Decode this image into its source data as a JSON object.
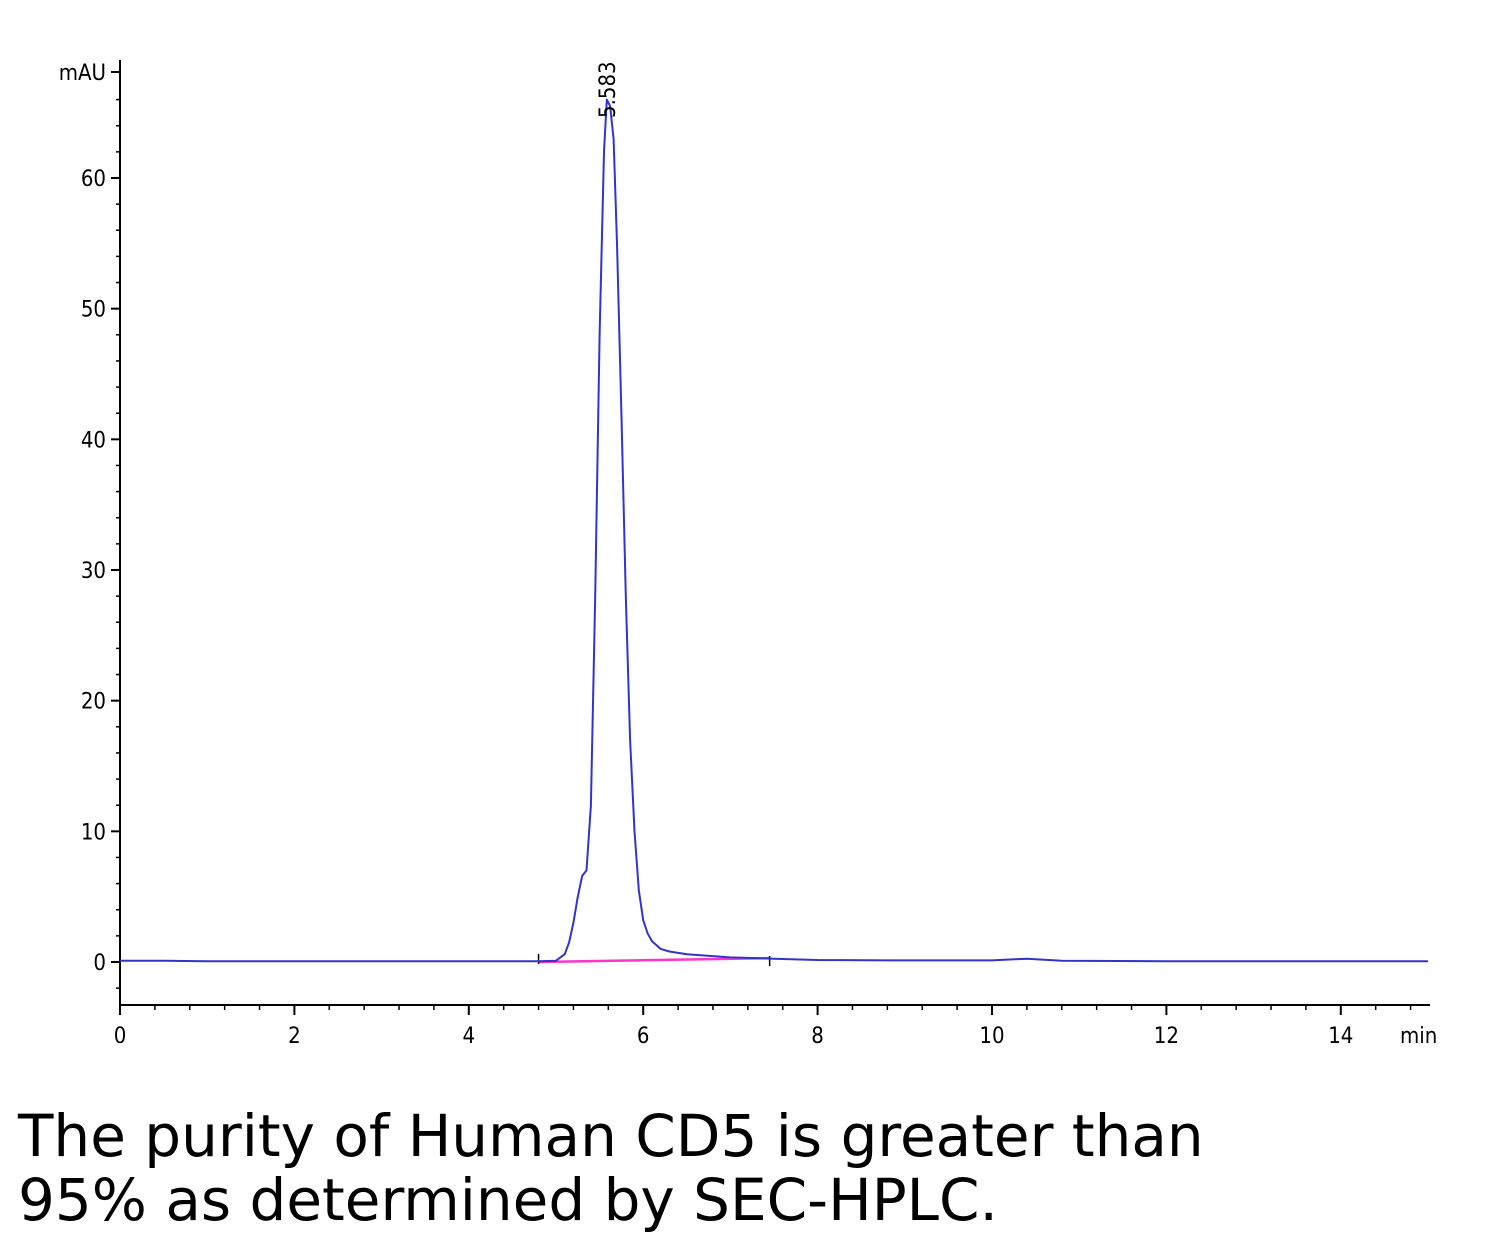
{
  "chart_data": {
    "type": "line",
    "ylabel": "mAU",
    "xlabel": "min",
    "xlim": [
      0,
      15
    ],
    "ylim": [
      -3,
      68
    ],
    "x_ticks": [
      0,
      2,
      4,
      6,
      8,
      10,
      12,
      14
    ],
    "y_ticks": [
      0,
      10,
      20,
      30,
      40,
      50,
      60
    ],
    "peak_label": "5.583",
    "colors": {
      "signal": "#3333cc",
      "baseline": "#ff33cc",
      "axis": "#000000"
    },
    "series": [
      {
        "x": [
          0.0,
          0.5,
          1.0,
          2.0,
          3.0,
          4.0,
          4.6,
          4.8,
          5.0,
          5.1,
          5.15,
          5.2,
          5.25,
          5.3,
          5.35,
          5.4,
          5.45,
          5.5,
          5.55,
          5.583,
          5.62,
          5.66,
          5.7,
          5.75,
          5.8,
          5.85,
          5.9,
          5.95,
          6.0,
          6.05,
          6.1,
          6.2,
          6.3,
          6.5,
          6.8,
          7.0,
          7.5,
          8.0,
          9.0,
          10.0,
          10.4,
          10.8,
          12.0,
          13.0,
          14.0,
          15.0
        ],
        "y": [
          0.1,
          0.1,
          0.05,
          0.05,
          0.05,
          0.05,
          0.05,
          0.05,
          0.1,
          0.6,
          1.5,
          3.0,
          5.0,
          6.6,
          7.0,
          12.0,
          28.0,
          48.0,
          62.0,
          66.0,
          65.5,
          63.0,
          55.0,
          42.0,
          28.0,
          17.0,
          10.0,
          5.5,
          3.2,
          2.2,
          1.6,
          1.0,
          0.8,
          0.6,
          0.45,
          0.35,
          0.25,
          0.15,
          0.12,
          0.12,
          0.25,
          0.1,
          0.05,
          0.05,
          0.05,
          0.05
        ]
      }
    ],
    "baseline": {
      "x": [
        4.8,
        7.45
      ],
      "y": [
        0.0,
        0.3
      ]
    }
  },
  "caption": {
    "line1": "The purity of Human CD5 is greater than",
    "line2": "95% as determined by SEC-HPLC."
  }
}
